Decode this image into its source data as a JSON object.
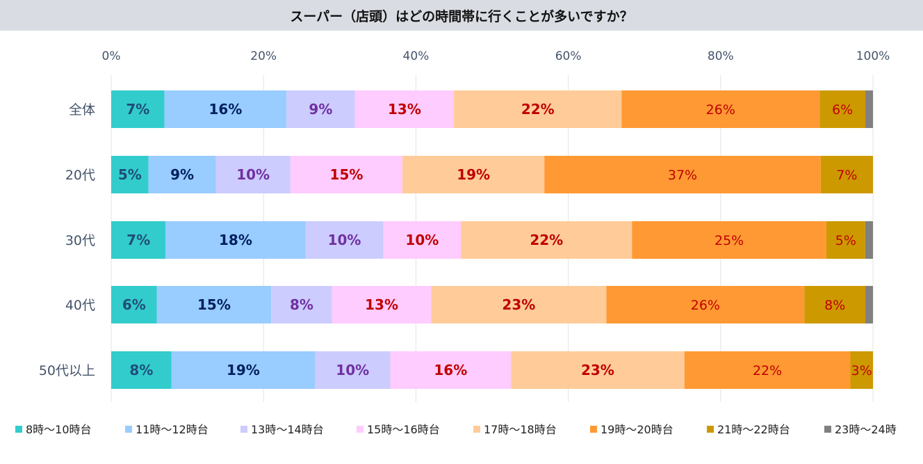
{
  "chart_data": {
    "type": "bar",
    "orientation": "horizontal",
    "stacked": true,
    "percent_stacked": true,
    "title": "スーパー（店頭）はどの時間帯に行くことが多いですか？",
    "x_ticks": [
      "0%",
      "20%",
      "40%",
      "60%",
      "80%",
      "100%"
    ],
    "xlim": [
      0,
      100
    ],
    "grid": true,
    "legend_position": "bottom",
    "categories": [
      "全体",
      "20代",
      "30代",
      "40代",
      "50代以上"
    ],
    "series": [
      {
        "name": "8時～10時台",
        "color": "#33cccc",
        "label_color": "#1f4e79",
        "values": [
          7,
          5,
          7,
          6,
          8
        ],
        "labels": [
          "7%",
          "5%",
          "7%",
          "6%",
          "8%"
        ]
      },
      {
        "name": "11時～12時台",
        "color": "#99ccff",
        "label_color": "#002060",
        "values": [
          16,
          9,
          18,
          15,
          19
        ],
        "labels": [
          "16%",
          "9%",
          "18%",
          "15%",
          "19%"
        ]
      },
      {
        "name": "13時～14時台",
        "color": "#ccccff",
        "label_color": "#7030a0",
        "values": [
          9,
          10,
          10,
          8,
          10
        ],
        "labels": [
          "9%",
          "10%",
          "10%",
          "8%",
          "10%"
        ]
      },
      {
        "name": "15時～16時台",
        "color": "#ffccff",
        "label_color": "#c00000",
        "values": [
          13,
          15,
          10,
          13,
          16
        ],
        "labels": [
          "13%",
          "15%",
          "10%",
          "13%",
          "16%"
        ]
      },
      {
        "name": "17時～18時台",
        "color": "#ffcc99",
        "label_color": "#c00000",
        "values": [
          22,
          19,
          22,
          23,
          23
        ],
        "labels": [
          "22%",
          "19%",
          "22%",
          "23%",
          "23%"
        ]
      },
      {
        "name": "19時～20時台",
        "color": "#ff9933",
        "label_color": "#c00000",
        "values": [
          26,
          37,
          25,
          26,
          22
        ],
        "labels": [
          "26%",
          "37%",
          "25%",
          "26%",
          "22%"
        ]
      },
      {
        "name": "21時～22時台",
        "color": "#cc9900",
        "label_color": "#c00000",
        "values": [
          6,
          7,
          5,
          8,
          3
        ],
        "labels": [
          "6%",
          "7%",
          "5%",
          "8%",
          "3%"
        ]
      },
      {
        "name": "23時～24時",
        "color": "#808080",
        "label_color": "#c00000",
        "values": [
          1,
          0,
          1,
          1,
          0
        ],
        "labels": [
          "",
          "",
          "",
          "",
          ""
        ]
      }
    ]
  }
}
